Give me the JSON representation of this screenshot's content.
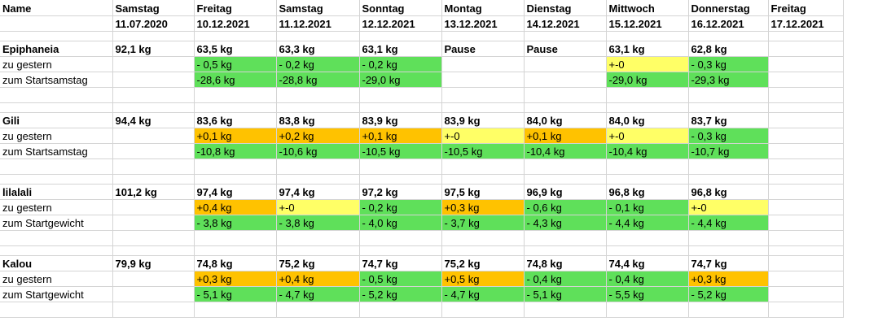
{
  "header": {
    "name_label": "Name",
    "columns": [
      {
        "day": "Samstag",
        "date": "11.07.2020"
      },
      {
        "day": "Freitag",
        "date": "10.12.2021"
      },
      {
        "day": "Samstag",
        "date": "11.12.2021"
      },
      {
        "day": "Sonntag",
        "date": "12.12.2021"
      },
      {
        "day": "Montag",
        "date": "13.12.2021"
      },
      {
        "day": "Dienstag",
        "date": "14.12.2021"
      },
      {
        "day": "Mittwoch",
        "date": "15.12.2021"
      },
      {
        "day": "Donnerstag",
        "date": "16.12.2021"
      },
      {
        "day": "Freitag",
        "date": "17.12.2021"
      }
    ]
  },
  "colors": {
    "green": "#5fe05a",
    "orange": "#ffc200",
    "yellow": "#ffff66",
    "gridline": "#d4d4d4"
  },
  "people": [
    {
      "name": "Epiphaneia",
      "values": [
        "92,1 kg",
        "63,5 kg",
        "63,3 kg",
        "63,1 kg",
        "Pause",
        "Pause",
        "63,1 kg",
        "62,8 kg",
        ""
      ],
      "rows": [
        {
          "label": "zu gestern",
          "cells": [
            {
              "text": "",
              "color": ""
            },
            {
              "text": "- 0,5 kg",
              "color": "green"
            },
            {
              "text": "- 0,2 kg",
              "color": "green"
            },
            {
              "text": "- 0,2 kg",
              "color": "green"
            },
            {
              "text": "",
              "color": ""
            },
            {
              "text": "",
              "color": ""
            },
            {
              "text": "+-0",
              "color": "yellow"
            },
            {
              "text": "- 0,3 kg",
              "color": "green"
            },
            {
              "text": "",
              "color": ""
            }
          ]
        },
        {
          "label": "zum Startsamstag",
          "cells": [
            {
              "text": "",
              "color": ""
            },
            {
              "text": "-28,6 kg",
              "color": "green"
            },
            {
              "text": "-28,8 kg",
              "color": "green"
            },
            {
              "text": "-29,0 kg",
              "color": "green"
            },
            {
              "text": "",
              "color": ""
            },
            {
              "text": "",
              "color": ""
            },
            {
              "text": "-29,0 kg",
              "color": "green"
            },
            {
              "text": "-29,3 kg",
              "color": "green"
            },
            {
              "text": "",
              "color": ""
            }
          ]
        }
      ]
    },
    {
      "name": "Gili",
      "values": [
        "94,4 kg",
        "83,6 kg",
        "83,8 kg",
        "83,9 kg",
        "83,9 kg",
        "84,0 kg",
        "84,0 kg",
        "83,7 kg",
        ""
      ],
      "rows": [
        {
          "label": "zu gestern",
          "cells": [
            {
              "text": "",
              "color": ""
            },
            {
              "text": "+0,1 kg",
              "color": "orange"
            },
            {
              "text": "+0,2 kg",
              "color": "orange"
            },
            {
              "text": "+0,1 kg",
              "color": "orange"
            },
            {
              "text": "+-0",
              "color": "yellow"
            },
            {
              "text": "+0,1 kg",
              "color": "orange"
            },
            {
              "text": "+-0",
              "color": "yellow"
            },
            {
              "text": "- 0,3 kg",
              "color": "green"
            },
            {
              "text": "",
              "color": ""
            }
          ]
        },
        {
          "label": "zum Startsamstag",
          "cells": [
            {
              "text": "",
              "color": ""
            },
            {
              "text": "-10,8 kg",
              "color": "green"
            },
            {
              "text": "-10,6 kg",
              "color": "green"
            },
            {
              "text": "-10,5 kg",
              "color": "green"
            },
            {
              "text": "-10,5 kg",
              "color": "green"
            },
            {
              "text": "-10,4 kg",
              "color": "green"
            },
            {
              "text": "-10,4 kg",
              "color": "green"
            },
            {
              "text": "-10,7 kg",
              "color": "green"
            },
            {
              "text": "",
              "color": ""
            }
          ]
        }
      ]
    },
    {
      "name": "lilalali",
      "values": [
        "101,2 kg",
        "97,4 kg",
        "97,4 kg",
        "97,2  kg",
        "97,5 kg",
        "96,9 kg",
        "96,8 kg",
        "96,8 kg",
        ""
      ],
      "rows": [
        {
          "label": "zu gestern",
          "cells": [
            {
              "text": "",
              "color": ""
            },
            {
              "text": "+0,4 kg",
              "color": "orange"
            },
            {
              "text": "+-0",
              "color": "yellow"
            },
            {
              "text": "- 0,2 kg",
              "color": "green"
            },
            {
              "text": "+0,3 kg",
              "color": "orange"
            },
            {
              "text": "- 0,6 kg",
              "color": "green"
            },
            {
              "text": "- 0,1 kg",
              "color": "green"
            },
            {
              "text": "+-0",
              "color": "yellow"
            },
            {
              "text": "",
              "color": ""
            }
          ]
        },
        {
          "label": "zum Startgewicht",
          "cells": [
            {
              "text": "",
              "color": ""
            },
            {
              "text": "- 3,8 kg",
              "color": "green"
            },
            {
              "text": "- 3,8 kg",
              "color": "green"
            },
            {
              "text": "- 4,0 kg",
              "color": "green"
            },
            {
              "text": "- 3,7 kg",
              "color": "green"
            },
            {
              "text": "- 4,3 kg",
              "color": "green"
            },
            {
              "text": "- 4,4 kg",
              "color": "green"
            },
            {
              "text": "- 4,4 kg",
              "color": "green"
            },
            {
              "text": "",
              "color": ""
            }
          ]
        }
      ]
    },
    {
      "name": "Kalou",
      "values": [
        "79,9 kg",
        "74,8 kg",
        "75,2 kg",
        "74,7 kg",
        "75,2 kg",
        "74,8 kg",
        "74,4 kg",
        "74,7 kg",
        ""
      ],
      "rows": [
        {
          "label": "zu gestern",
          "cells": [
            {
              "text": "",
              "color": ""
            },
            {
              "text": "+0,3 kg",
              "color": "orange"
            },
            {
              "text": "+0,4 kg",
              "color": "orange"
            },
            {
              "text": "- 0,5 kg",
              "color": "green"
            },
            {
              "text": "+0,5 kg",
              "color": "orange"
            },
            {
              "text": "- 0,4 kg",
              "color": "green"
            },
            {
              "text": "- 0,4 kg",
              "color": "green"
            },
            {
              "text": "+0,3 kg",
              "color": "orange"
            },
            {
              "text": "",
              "color": ""
            }
          ]
        },
        {
          "label": "zum Startgewicht",
          "cells": [
            {
              "text": "",
              "color": ""
            },
            {
              "text": "- 5,1 kg",
              "color": "green"
            },
            {
              "text": "- 4,7 kg",
              "color": "green"
            },
            {
              "text": "- 5,2 kg",
              "color": "green"
            },
            {
              "text": "- 4,7 kg",
              "color": "green"
            },
            {
              "text": "- 5,1 kg",
              "color": "green"
            },
            {
              "text": "- 5,5 kg",
              "color": "green"
            },
            {
              "text": "- 5,2 kg",
              "color": "green"
            },
            {
              "text": "",
              "color": ""
            }
          ]
        }
      ]
    }
  ]
}
